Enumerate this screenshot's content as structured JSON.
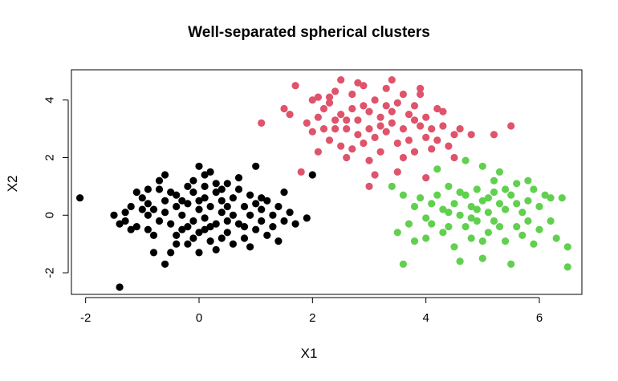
{
  "chart_data": {
    "type": "scatter",
    "title": "Well-separated spherical clusters",
    "xlabel": "X1",
    "ylabel": "X2",
    "xlim": [
      -2.25,
      6.75
    ],
    "ylim": [
      -2.75,
      5.05
    ],
    "x_ticks": [
      -2,
      0,
      2,
      4,
      6
    ],
    "y_ticks": [
      -2,
      0,
      2,
      4
    ],
    "grid": false,
    "legend": "none",
    "series": [
      {
        "color": "#000000",
        "points": [
          [
            -2.1,
            0.6
          ],
          [
            -1.4,
            -2.5
          ],
          [
            -1.5,
            0.0
          ],
          [
            -1.4,
            -0.3
          ],
          [
            -1.3,
            -0.2
          ],
          [
            -1.3,
            0.1
          ],
          [
            -1.2,
            0.3
          ],
          [
            -1.1,
            0.8
          ],
          [
            -1.0,
            0.6
          ],
          [
            -1.1,
            -0.4
          ],
          [
            -0.9,
            0.0
          ],
          [
            -0.9,
            0.4
          ],
          [
            -0.8,
            -0.7
          ],
          [
            -0.8,
            -1.3
          ],
          [
            -0.7,
            1.2
          ],
          [
            -0.7,
            0.9
          ],
          [
            -0.6,
            0.5
          ],
          [
            -0.6,
            -1.7
          ],
          [
            -0.6,
            0.1
          ],
          [
            -0.5,
            -0.3
          ],
          [
            -0.5,
            0.8
          ],
          [
            -0.4,
            0.3
          ],
          [
            -0.4,
            -1.0
          ],
          [
            -0.4,
            0.7
          ],
          [
            -0.3,
            0.0
          ],
          [
            -0.3,
            -0.5
          ],
          [
            -0.2,
            1.0
          ],
          [
            -0.2,
            0.4
          ],
          [
            -0.1,
            -0.2
          ],
          [
            -0.1,
            1.2
          ],
          [
            -0.1,
            -0.8
          ],
          [
            0.0,
            0.2
          ],
          [
            0.0,
            1.7
          ],
          [
            0.0,
            -0.6
          ],
          [
            0.1,
            0.6
          ],
          [
            0.1,
            -0.1
          ],
          [
            0.1,
            1.0
          ],
          [
            0.2,
            -0.9
          ],
          [
            0.2,
            0.3
          ],
          [
            0.2,
            1.5
          ],
          [
            0.3,
            -0.3
          ],
          [
            0.3,
            0.8
          ],
          [
            0.3,
            -1.2
          ],
          [
            0.4,
            0.1
          ],
          [
            0.4,
            0.5
          ],
          [
            0.5,
            1.1
          ],
          [
            0.5,
            -0.6
          ],
          [
            0.6,
            0.0
          ],
          [
            0.6,
            0.6
          ],
          [
            0.7,
            -0.3
          ],
          [
            0.7,
            1.3
          ],
          [
            0.8,
            0.3
          ],
          [
            0.8,
            -0.8
          ],
          [
            0.9,
            0.0
          ],
          [
            0.9,
            0.7
          ],
          [
            1.0,
            -0.5
          ],
          [
            1.0,
            1.7
          ],
          [
            1.1,
            0.2
          ],
          [
            1.1,
            -0.2
          ],
          [
            1.2,
            0.5
          ],
          [
            1.2,
            -0.7
          ],
          [
            1.3,
            0.0
          ],
          [
            1.4,
            0.3
          ],
          [
            1.4,
            -0.9
          ],
          [
            1.5,
            0.8
          ],
          [
            1.5,
            -0.2
          ],
          [
            1.6,
            0.1
          ],
          [
            1.7,
            -0.3
          ],
          [
            1.9,
            -0.1
          ],
          [
            2.0,
            1.4
          ],
          [
            -0.9,
            -0.5
          ],
          [
            -0.8,
            0.2
          ],
          [
            -0.7,
            -0.2
          ],
          [
            -0.6,
            1.4
          ],
          [
            -0.5,
            -1.3
          ],
          [
            -0.4,
            -0.7
          ],
          [
            -0.2,
            -1.0
          ],
          [
            -0.1,
            0.8
          ],
          [
            0.0,
            -1.3
          ],
          [
            0.1,
            1.4
          ],
          [
            0.2,
            -0.4
          ],
          [
            0.3,
            1.1
          ],
          [
            0.4,
            -0.8
          ],
          [
            0.5,
            0.3
          ],
          [
            0.6,
            -1.0
          ],
          [
            0.7,
            0.9
          ],
          [
            0.8,
            -0.4
          ],
          [
            0.9,
            -1.1
          ],
          [
            1.0,
            0.4
          ],
          [
            1.3,
            -0.4
          ],
          [
            -1.2,
            -0.5
          ],
          [
            -1.0,
            0.2
          ],
          [
            -0.9,
            0.9
          ],
          [
            -0.3,
            0.5
          ],
          [
            -0.2,
            -0.4
          ],
          [
            0.0,
            0.5
          ],
          [
            0.1,
            -0.5
          ],
          [
            0.4,
            0.9
          ],
          [
            0.5,
            -0.2
          ],
          [
            1.1,
            0.6
          ]
        ]
      },
      {
        "color": "#df536b",
        "points": [
          [
            1.1,
            3.2
          ],
          [
            1.5,
            3.7
          ],
          [
            1.6,
            3.5
          ],
          [
            1.7,
            4.5
          ],
          [
            1.8,
            1.5
          ],
          [
            1.9,
            3.2
          ],
          [
            2.0,
            2.9
          ],
          [
            2.0,
            4.0
          ],
          [
            2.1,
            3.4
          ],
          [
            2.1,
            2.2
          ],
          [
            2.2,
            3.0
          ],
          [
            2.2,
            3.7
          ],
          [
            2.3,
            2.6
          ],
          [
            2.3,
            3.9
          ],
          [
            2.4,
            3.3
          ],
          [
            2.4,
            4.3
          ],
          [
            2.5,
            2.4
          ],
          [
            2.5,
            3.5
          ],
          [
            2.5,
            4.7
          ],
          [
            2.6,
            3.0
          ],
          [
            2.6,
            2.0
          ],
          [
            2.7,
            3.7
          ],
          [
            2.7,
            4.2
          ],
          [
            2.8,
            2.8
          ],
          [
            2.8,
            3.3
          ],
          [
            2.9,
            4.5
          ],
          [
            2.9,
            2.5
          ],
          [
            3.0,
            3.6
          ],
          [
            3.0,
            1.9
          ],
          [
            3.0,
            3.0
          ],
          [
            3.1,
            4.0
          ],
          [
            3.1,
            2.7
          ],
          [
            3.2,
            3.4
          ],
          [
            3.2,
            2.2
          ],
          [
            3.3,
            3.8
          ],
          [
            3.3,
            2.9
          ],
          [
            3.4,
            4.7
          ],
          [
            3.4,
            3.2
          ],
          [
            3.5,
            2.5
          ],
          [
            3.5,
            3.9
          ],
          [
            3.6,
            3.0
          ],
          [
            3.6,
            4.2
          ],
          [
            3.7,
            2.6
          ],
          [
            3.7,
            3.5
          ],
          [
            3.8,
            2.2
          ],
          [
            3.8,
            3.8
          ],
          [
            3.9,
            3.1
          ],
          [
            3.9,
            4.2
          ],
          [
            4.0,
            2.7
          ],
          [
            4.0,
            3.4
          ],
          [
            4.1,
            3.0
          ],
          [
            4.1,
            2.3
          ],
          [
            4.2,
            3.7
          ],
          [
            4.2,
            2.6
          ],
          [
            4.3,
            3.1
          ],
          [
            4.4,
            2.4
          ],
          [
            4.5,
            2.0
          ],
          [
            4.6,
            3.0
          ],
          [
            4.8,
            2.8
          ],
          [
            5.2,
            2.8
          ],
          [
            5.5,
            3.1
          ],
          [
            3.5,
            1.5
          ],
          [
            3.0,
            1.0
          ],
          [
            4.0,
            1.3
          ],
          [
            2.8,
            4.6
          ],
          [
            3.9,
            4.4
          ],
          [
            2.4,
            3.0
          ],
          [
            3.4,
            3.6
          ],
          [
            2.7,
            2.3
          ],
          [
            3.6,
            2.0
          ],
          [
            2.1,
            4.1
          ],
          [
            2.9,
            3.8
          ],
          [
            3.3,
            4.4
          ],
          [
            4.3,
            3.6
          ],
          [
            2.6,
            3.3
          ],
          [
            3.1,
            1.4
          ],
          [
            3.8,
            3.3
          ],
          [
            2.3,
            4.1
          ],
          [
            4.5,
            2.8
          ],
          [
            3.2,
            3.1
          ]
        ]
      },
      {
        "color": "#61d04f",
        "points": [
          [
            3.5,
            -0.6
          ],
          [
            3.6,
            0.7
          ],
          [
            3.6,
            -1.7
          ],
          [
            3.7,
            -0.3
          ],
          [
            3.8,
            0.3
          ],
          [
            3.8,
            -0.9
          ],
          [
            3.9,
            0.6
          ],
          [
            4.0,
            -0.1
          ],
          [
            4.0,
            -0.8
          ],
          [
            4.1,
            0.4
          ],
          [
            4.1,
            -0.3
          ],
          [
            4.2,
            0.7
          ],
          [
            4.2,
            1.6
          ],
          [
            4.3,
            -0.6
          ],
          [
            4.3,
            0.2
          ],
          [
            4.4,
            1.0
          ],
          [
            4.4,
            -0.4
          ],
          [
            4.5,
            0.4
          ],
          [
            4.5,
            -1.1
          ],
          [
            4.6,
            0.0
          ],
          [
            4.6,
            0.8
          ],
          [
            4.7,
            -0.4
          ],
          [
            4.7,
            1.9
          ],
          [
            4.8,
            0.3
          ],
          [
            4.8,
            -0.8
          ],
          [
            4.9,
            0.9
          ],
          [
            4.9,
            -0.2
          ],
          [
            5.0,
            0.5
          ],
          [
            5.0,
            -1.5
          ],
          [
            5.0,
            1.7
          ],
          [
            5.1,
            0.1
          ],
          [
            5.1,
            -0.6
          ],
          [
            5.2,
            0.8
          ],
          [
            5.2,
            -0.2
          ],
          [
            5.3,
            0.4
          ],
          [
            5.3,
            1.5
          ],
          [
            5.4,
            -0.9
          ],
          [
            5.4,
            0.2
          ],
          [
            5.5,
            -1.7
          ],
          [
            5.5,
            0.7
          ],
          [
            5.6,
            -0.4
          ],
          [
            5.6,
            1.1
          ],
          [
            5.7,
            0.1
          ],
          [
            5.7,
            -0.7
          ],
          [
            5.8,
            0.5
          ],
          [
            5.8,
            -0.2
          ],
          [
            5.9,
            0.9
          ],
          [
            5.9,
            -1.0
          ],
          [
            6.0,
            0.3
          ],
          [
            6.0,
            -0.5
          ],
          [
            6.1,
            0.7
          ],
          [
            6.2,
            -0.2
          ],
          [
            6.2,
            0.6
          ],
          [
            6.3,
            -0.8
          ],
          [
            6.4,
            0.6
          ],
          [
            6.5,
            -1.1
          ],
          [
            6.5,
            -1.8
          ],
          [
            3.4,
            1.0
          ],
          [
            4.6,
            -1.6
          ],
          [
            5.2,
            1.2
          ],
          [
            4.4,
            0.1
          ],
          [
            5.6,
            0.4
          ],
          [
            4.8,
            -0.1
          ],
          [
            5.3,
            -0.4
          ],
          [
            4.9,
            0.2
          ],
          [
            5.1,
            0.6
          ],
          [
            4.7,
            0.7
          ],
          [
            5.4,
            0.9
          ],
          [
            5.0,
            -0.9
          ],
          [
            5.8,
            1.2
          ]
        ]
      }
    ]
  }
}
